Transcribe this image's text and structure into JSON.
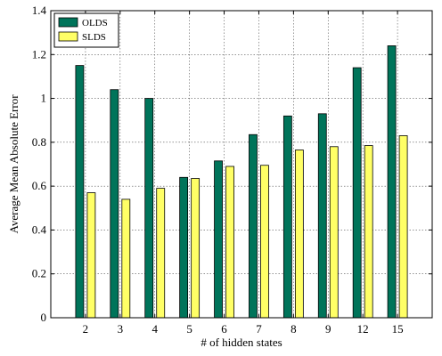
{
  "chart_data": {
    "type": "bar",
    "title": "",
    "xlabel": "# of hidden states",
    "ylabel": "Average Mean Absolute Error",
    "categories": [
      "2",
      "3",
      "4",
      "5",
      "6",
      "7",
      "8",
      "9",
      "12",
      "15"
    ],
    "series": [
      {
        "name": "OLDS",
        "color": "#00745A",
        "values": [
          1.15,
          1.04,
          1.0,
          0.64,
          0.715,
          0.835,
          0.92,
          0.93,
          1.14,
          1.24
        ]
      },
      {
        "name": "SLDS",
        "color": "#FFFF66",
        "values": [
          0.57,
          0.54,
          0.59,
          0.635,
          0.69,
          0.695,
          0.765,
          0.78,
          0.785,
          0.83
        ]
      }
    ],
    "ylim": [
      0,
      1.4
    ],
    "yticks": [
      0,
      0.2,
      0.4,
      0.6,
      0.8,
      1,
      1.2,
      1.4
    ],
    "ytick_labels": [
      "0",
      "0.2",
      "0.4",
      "0.6",
      "0.8",
      "1",
      "1.2",
      "1.4"
    ],
    "grid": true,
    "legend_position": "top-left"
  }
}
